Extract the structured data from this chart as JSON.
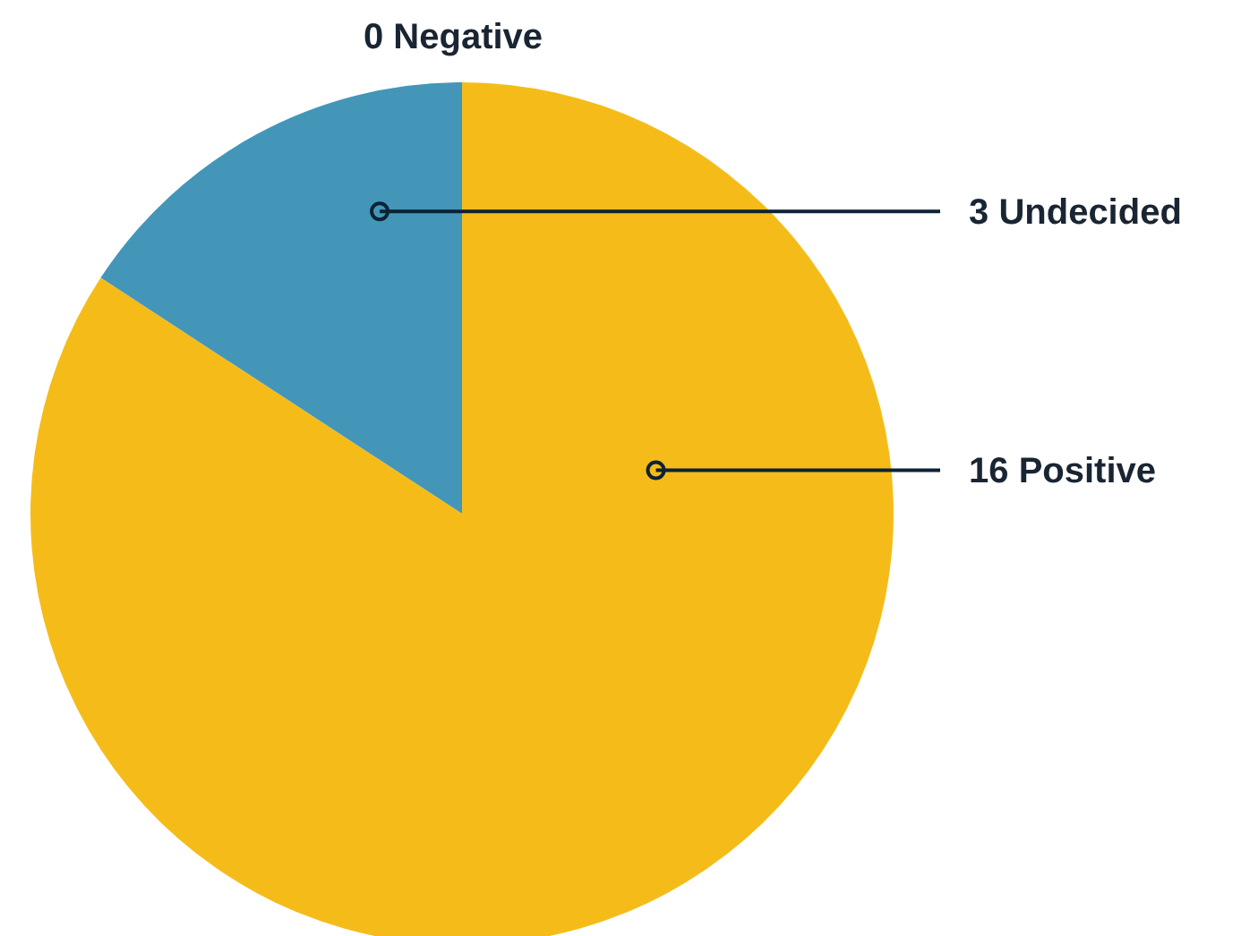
{
  "chart_data": {
    "type": "pie",
    "categories": [
      "Negative",
      "Positive",
      "Undecided"
    ],
    "values": [
      0,
      16,
      3
    ],
    "value_labels": [
      "0",
      "16",
      "3"
    ],
    "colors": [
      "#e05a47",
      "#f5bc19",
      "#4396b8"
    ]
  }
}
